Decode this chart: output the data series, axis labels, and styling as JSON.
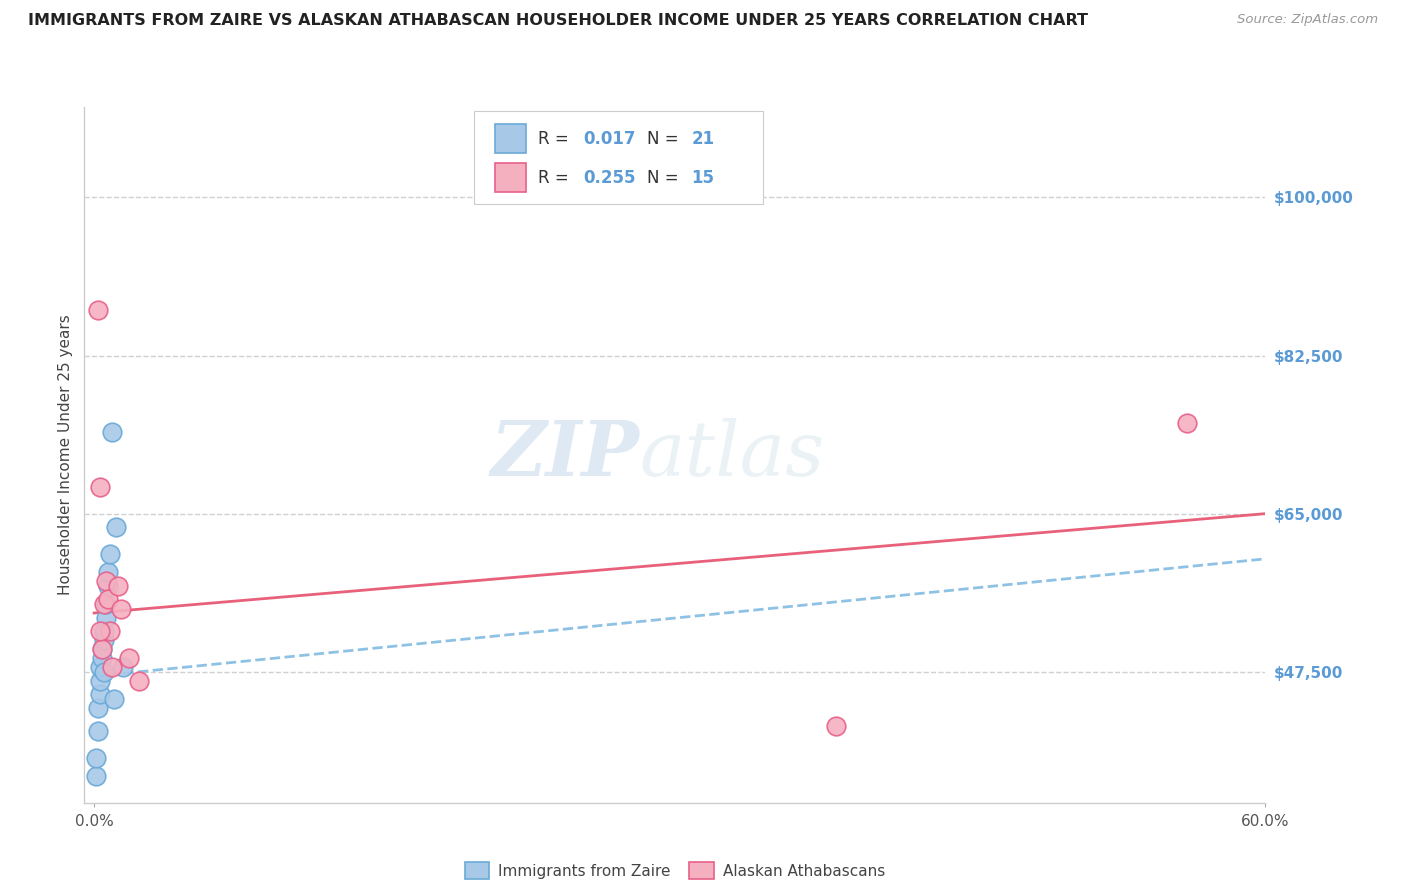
{
  "title": "IMMIGRANTS FROM ZAIRE VS ALASKAN ATHABASCAN HOUSEHOLDER INCOME UNDER 25 YEARS CORRELATION CHART",
  "source": "Source: ZipAtlas.com",
  "ylabel": "Householder Income Under 25 years",
  "ytick_labels": [
    "$47,500",
    "$65,000",
    "$82,500",
    "$100,000"
  ],
  "ytick_vals": [
    47500,
    65000,
    82500,
    100000
  ],
  "xlim": [
    -0.005,
    0.6
  ],
  "ylim": [
    33000,
    110000
  ],
  "blue_color": "#a8c8e8",
  "pink_color": "#f5b0c0",
  "blue_edge_color": "#6aaad8",
  "pink_edge_color": "#e8608a",
  "blue_line_color": "#7ab8e0",
  "pink_line_color": "#e8607a",
  "legend1": "Immigrants from Zaire",
  "legend2": "Alaskan Athabascans",
  "watermark_zip": "ZIP",
  "watermark_atlas": "atlas",
  "blue_x": [
    0.001,
    0.001,
    0.002,
    0.002,
    0.003,
    0.003,
    0.003,
    0.004,
    0.004,
    0.005,
    0.005,
    0.005,
    0.006,
    0.006,
    0.007,
    0.007,
    0.008,
    0.009,
    0.01,
    0.011,
    0.015
  ],
  "blue_y": [
    36000,
    38000,
    41000,
    43500,
    45000,
    46500,
    48000,
    49000,
    50000,
    51000,
    52000,
    47500,
    53500,
    55000,
    57000,
    58500,
    60500,
    74000,
    44500,
    63500,
    48000
  ],
  "pink_x": [
    0.002,
    0.003,
    0.004,
    0.005,
    0.006,
    0.007,
    0.008,
    0.009,
    0.012,
    0.014,
    0.018,
    0.023,
    0.38,
    0.56,
    0.003
  ],
  "pink_y": [
    87500,
    68000,
    50000,
    55000,
    57500,
    55500,
    52000,
    48000,
    57000,
    54500,
    49000,
    46500,
    41500,
    75000,
    52000
  ],
  "pink_line_x0": 0.0,
  "pink_line_y0": 54000,
  "pink_line_x1": 0.6,
  "pink_line_y1": 65000,
  "blue_line_x0": 0.0,
  "blue_line_y0": 47000,
  "blue_line_x1": 0.6,
  "blue_line_y1": 60000
}
